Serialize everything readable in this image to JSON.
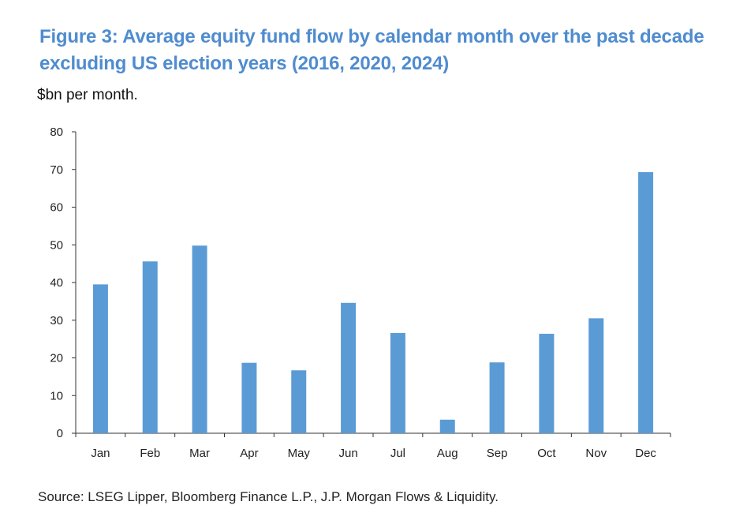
{
  "figure": {
    "title": "Figure 3: Average equity fund flow by calendar month over the past decade excluding US election years (2016, 2020, 2024)",
    "unit_label": "$bn per month.",
    "source": "Source: LSEG Lipper, Bloomberg Finance L.P., J.P. Morgan Flows & Liquidity."
  },
  "colors": {
    "title": "#4f8ccf",
    "bar": "#5b9bd5",
    "axis": "#333333"
  },
  "chart_data": {
    "type": "bar",
    "title": "Figure 3: Average equity fund flow by calendar month over the past decade excluding US election years (2016, 2020, 2024)",
    "xlabel": "",
    "ylabel": "$bn per month.",
    "categories": [
      "Jan",
      "Feb",
      "Mar",
      "Apr",
      "May",
      "Jun",
      "Jul",
      "Aug",
      "Sep",
      "Oct",
      "Nov",
      "Dec"
    ],
    "values": [
      39.5,
      45.6,
      49.8,
      18.7,
      16.7,
      34.6,
      26.6,
      3.6,
      18.8,
      26.4,
      30.5,
      69.3
    ],
    "ylim": [
      0,
      80
    ],
    "yticks": [
      0,
      10,
      20,
      30,
      40,
      50,
      60,
      70,
      80
    ],
    "grid": false,
    "legend": "none"
  }
}
